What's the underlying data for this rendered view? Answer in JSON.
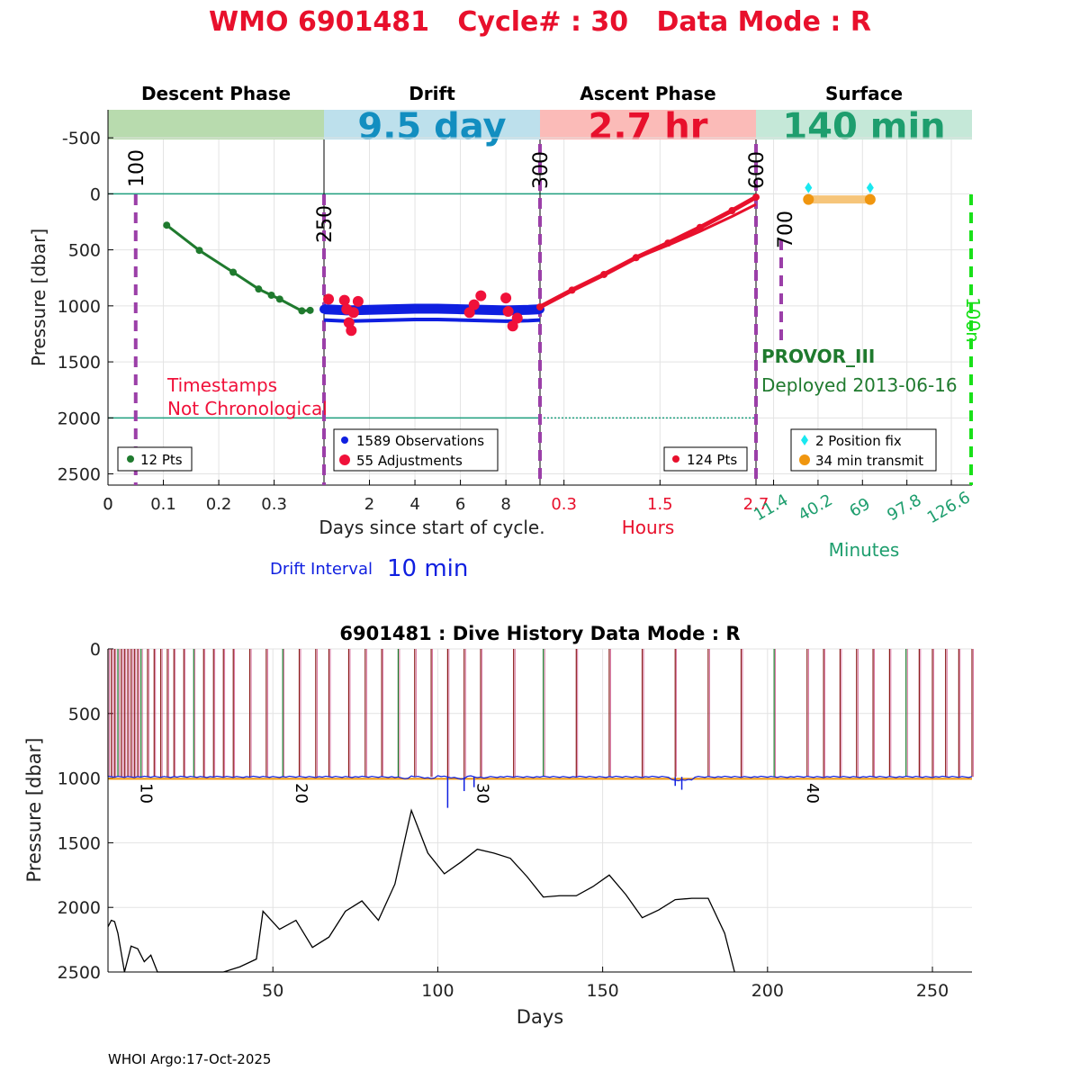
{
  "title": "WMO 6901481   Cycle# : 30   Data Mode : R",
  "colors": {
    "title": "#e8102c",
    "descent": "#1f7a2e",
    "drift": "#0f1fe0",
    "adjust": "#f0113a",
    "ascent": "#e8102c",
    "surface": "#1e9e6e",
    "marker": "#9b3fa8",
    "cyan": "#19e8f0",
    "orange": "#f0960f",
    "green_dash": "#19e019",
    "teal_line": "#1e9e7e",
    "bar_descent": "#b8dbae",
    "bar_drift": "#bde0ec",
    "bar_ascent": "#fbbbb8",
    "bar_surface": "#c5e8d8"
  },
  "chart_data": [
    {
      "type": "line",
      "phases": [
        {
          "key": "descent",
          "header": "Descent Phase",
          "duration": ""
        },
        {
          "key": "drift",
          "header": "Drift",
          "duration": "9.5 day"
        },
        {
          "key": "ascent",
          "header": "Ascent Phase",
          "duration": "2.7 hr"
        },
        {
          "key": "surface",
          "header": "Surface",
          "duration": "140 min"
        }
      ],
      "ylabel": "Pressure [dbar]",
      "ylim": [
        -750,
        2600
      ],
      "yticks": [
        -500,
        0,
        500,
        1000,
        1500,
        2000,
        2500
      ],
      "reference_lines": [
        0,
        2000
      ],
      "descent": {
        "xlim": [
          0,
          0.39
        ],
        "xticks": [
          "0",
          "0.1",
          "0.2",
          "0.3"
        ],
        "xtick_values": [
          0,
          0.1,
          0.2,
          0.3
        ],
        "x": [
          0.106,
          0.165,
          0.226,
          0.272,
          0.295,
          0.31,
          0.35,
          0.365
        ],
        "y": [
          280,
          505,
          700,
          850,
          905,
          940,
          1045,
          1040
        ],
        "legend": "12 Pts",
        "marker_line": {
          "x": 0.05,
          "label": "100"
        },
        "annotation": "Timestamps\nNot Chronological"
      },
      "drift": {
        "xlim": [
          0,
          9.5
        ],
        "xticks": [
          "2",
          "4",
          "6",
          "8"
        ],
        "xtick_values": [
          2,
          4,
          6,
          8
        ],
        "legend_observations": "1589 Observations",
        "legend_adjustments": "55 Adjustments",
        "marker_line": {
          "label": "250"
        },
        "observations": {
          "x": [
            0,
            1,
            2,
            3,
            4,
            5,
            6,
            7,
            8,
            9,
            9.5
          ],
          "y": [
            1030,
            1040,
            1035,
            1030,
            1025,
            1025,
            1030,
            1035,
            1040,
            1035,
            1030
          ]
        },
        "adjustments": {
          "x": [
            0.2,
            0.9,
            1.0,
            1.1,
            1.2,
            1.3,
            1.5,
            6.4,
            6.6,
            6.9,
            8.0,
            8.1,
            8.3,
            8.5
          ],
          "y": [
            940,
            950,
            1030,
            1150,
            1220,
            1060,
            960,
            1060,
            990,
            910,
            930,
            1050,
            1180,
            1110
          ]
        }
      },
      "ascent": {
        "xlim": [
          0,
          2.7
        ],
        "xticks": [
          "0.3",
          "1.5",
          "2.7"
        ],
        "xtick_values": [
          0.3,
          1.5,
          2.7
        ],
        "x": [
          0,
          0.4,
          0.8,
          1.2,
          1.6,
          2.0,
          2.4,
          2.7
        ],
        "y": [
          1010,
          860,
          720,
          570,
          440,
          300,
          150,
          30
        ],
        "legend": "124 Pts",
        "xlabel": "Hours",
        "marker_line": {
          "label": "300"
        }
      },
      "surface": {
        "xlim": [
          0,
          140
        ],
        "xticks": [
          "11.4",
          "40.2",
          "69",
          "97.8",
          "126.6"
        ],
        "xtick_values": [
          11.4,
          40.2,
          69,
          97.8,
          126.6
        ],
        "xlabel": "Minutes",
        "position_fix": {
          "x": [
            34,
            74
          ],
          "y": [
            50,
            50
          ]
        },
        "transmit": {
          "x": [
            34,
            74
          ],
          "y": [
            50,
            50
          ]
        },
        "legend_fix": "2 Position fix",
        "legend_transmit": "34 min transmit",
        "float_type": "PROVOR_III",
        "deployed": "Deployed 2013-06-16",
        "marker_line": {
          "label": "600"
        },
        "marker_700": {
          "label": "700"
        },
        "marker_end": {
          "label": "100n"
        }
      },
      "xlabel": "Days since start of cycle.",
      "drift_interval_label": "Drift Interval",
      "drift_interval_value": "10 min"
    },
    {
      "type": "line",
      "title": "6901481 : Dive History      Data Mode : R",
      "xlabel": "Days",
      "ylabel": "Pressure [dbar]",
      "xlim": [
        0,
        262
      ],
      "ylim": [
        0,
        2500
      ],
      "xticks": [
        50,
        100,
        150,
        200,
        250
      ],
      "yticks": [
        0,
        500,
        1000,
        1500,
        2000,
        2500
      ],
      "profile_days": [
        0,
        1,
        2,
        3,
        4,
        5,
        6,
        7,
        8,
        9,
        10,
        12,
        14,
        16,
        18,
        20,
        23,
        26,
        29,
        32,
        35,
        38,
        43,
        48,
        53,
        58,
        63,
        67,
        73,
        78,
        83,
        88,
        93,
        98,
        103,
        108,
        113,
        123,
        132,
        142,
        152,
        162,
        172,
        182,
        192,
        202,
        212,
        217,
        222,
        227,
        232,
        237,
        242,
        246,
        250,
        254,
        258,
        262
      ],
      "cycle_labels": [
        {
          "day": 10,
          "label": "10"
        },
        {
          "day": 57,
          "label": "20"
        },
        {
          "day": 112,
          "label": "30"
        },
        {
          "day": 212,
          "label": "40"
        }
      ],
      "bathymetry": {
        "x": [
          0,
          1,
          2,
          3,
          5,
          7,
          9,
          11,
          13,
          15,
          20,
          25,
          30,
          35,
          40,
          45,
          47,
          52,
          57,
          62,
          67,
          72,
          77,
          82,
          87,
          92,
          97,
          102,
          107,
          112,
          117,
          122,
          127,
          132,
          137,
          142,
          147,
          152,
          157,
          162,
          167,
          172,
          177,
          182,
          187,
          190
        ],
        "y": [
          2150,
          2100,
          2110,
          2200,
          2500,
          2300,
          2320,
          2420,
          2370,
          2500,
          2580,
          2570,
          2550,
          2500,
          2460,
          2400,
          2030,
          2170,
          2100,
          2310,
          2230,
          2030,
          1950,
          2100,
          1820,
          1250,
          1580,
          1740,
          1650,
          1550,
          1580,
          1620,
          1760,
          1920,
          1910,
          1910,
          1840,
          1750,
          1900,
          2080,
          2020,
          1940,
          1930,
          1930,
          2200,
          2500
        ]
      }
    }
  ],
  "footer": "WHOI Argo:17-Oct-2025"
}
